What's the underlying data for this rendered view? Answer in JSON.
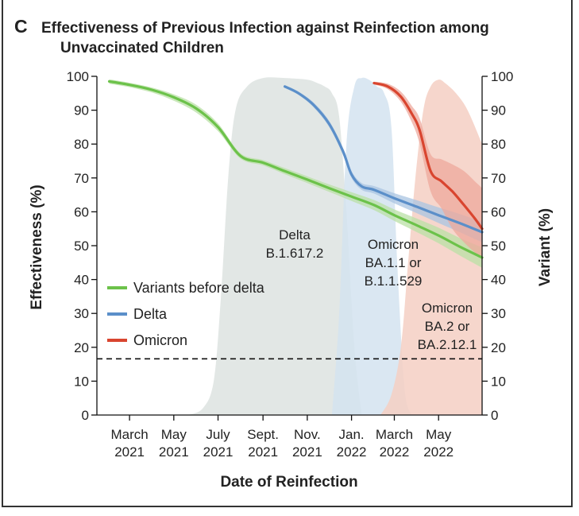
{
  "panel_label": "C",
  "chart_data": {
    "type": "line",
    "title": "Effectiveness of Previous Infection against Reinfection among",
    "title_line2": "Unvaccinated Children",
    "xlabel": "Date of Reinfection",
    "ylabel": "Effectiveness (%)",
    "y2label": "Variant (%)",
    "ylim": [
      0,
      100
    ],
    "y2lim": [
      0,
      100
    ],
    "yticks": [
      0,
      10,
      20,
      30,
      40,
      50,
      60,
      70,
      80,
      90,
      100
    ],
    "xlim": [
      "2021-01-15",
      "2022-06-30"
    ],
    "xticks": [
      {
        "date": "2021-03-01",
        "line1": "March",
        "line2": "2021"
      },
      {
        "date": "2021-05-01",
        "line1": "May",
        "line2": "2021"
      },
      {
        "date": "2021-07-01",
        "line1": "July",
        "line2": "2021"
      },
      {
        "date": "2021-09-01",
        "line1": "Sept.",
        "line2": "2021"
      },
      {
        "date": "2021-11-01",
        "line1": "Nov.",
        "line2": "2021"
      },
      {
        "date": "2022-01-01",
        "line1": "Jan.",
        "line2": "2022"
      },
      {
        "date": "2022-03-01",
        "line1": "March",
        "line2": "2022"
      },
      {
        "date": "2022-05-01",
        "line1": "May",
        "line2": "2022"
      }
    ],
    "reference_line": 16.6,
    "series": [
      {
        "name": "Variants before delta",
        "color": "#6cc24a",
        "band_color": "#b9e0a5",
        "x": [
          "2021-02-01",
          "2021-03-01",
          "2021-04-01",
          "2021-05-01",
          "2021-06-01",
          "2021-07-01",
          "2021-08-01",
          "2021-09-01",
          "2021-10-01",
          "2021-11-01",
          "2021-12-01",
          "2022-01-01",
          "2022-02-01",
          "2022-03-01",
          "2022-04-01",
          "2022-05-01",
          "2022-06-01",
          "2022-06-30"
        ],
        "y": [
          98.5,
          97.5,
          96.0,
          93.8,
          90.5,
          85.0,
          76.5,
          74.5,
          72.0,
          69.5,
          67.0,
          64.5,
          62.0,
          59.0,
          56.0,
          53.0,
          49.5,
          46.5
        ],
        "lower": [
          97.8,
          96.8,
          95.2,
          92.8,
          89.3,
          83.8,
          75.7,
          73.7,
          71.1,
          68.5,
          65.9,
          63.2,
          60.5,
          57.3,
          54.0,
          50.7,
          46.9,
          43.5
        ],
        "upper": [
          99.1,
          98.1,
          96.7,
          94.7,
          91.6,
          86.1,
          77.3,
          75.3,
          72.9,
          70.5,
          68.1,
          65.8,
          63.5,
          60.7,
          58.0,
          55.3,
          52.1,
          49.5
        ]
      },
      {
        "name": "Delta",
        "color": "#5b8fc9",
        "band_color": "#a9c4e2",
        "x": [
          "2021-10-01",
          "2021-10-20",
          "2021-11-10",
          "2021-12-01",
          "2021-12-20",
          "2022-01-01",
          "2022-01-15",
          "2022-02-01",
          "2022-03-01",
          "2022-04-01",
          "2022-05-01",
          "2022-06-01",
          "2022-06-30"
        ],
        "y": [
          97.0,
          95.0,
          91.5,
          86.0,
          78.0,
          71.0,
          67.5,
          66.5,
          64.0,
          61.5,
          59.0,
          56.5,
          54.0
        ],
        "lower": [
          96.6,
          94.5,
          90.8,
          85.1,
          77.0,
          70.0,
          66.5,
          65.4,
          62.5,
          59.6,
          56.7,
          53.8,
          51.0
        ],
        "upper": [
          97.4,
          95.5,
          92.2,
          86.9,
          79.0,
          72.0,
          68.5,
          67.6,
          65.5,
          63.4,
          61.3,
          59.2,
          57.0
        ]
      },
      {
        "name": "Omicron",
        "color": "#d9452f",
        "band_color": "#eea89c",
        "x": [
          "2022-02-01",
          "2022-02-20",
          "2022-03-10",
          "2022-03-25",
          "2022-04-05",
          "2022-04-20",
          "2022-05-05",
          "2022-05-20",
          "2022-06-05",
          "2022-06-20",
          "2022-06-30"
        ],
        "y": [
          98.0,
          97.0,
          94.0,
          89.0,
          84.0,
          72.0,
          69.0,
          66.0,
          62.0,
          58.0,
          55.0
        ],
        "lower": [
          97.6,
          96.2,
          92.5,
          86.5,
          80.0,
          66.0,
          61.0,
          55.0,
          51.0,
          48.0,
          46.0
        ],
        "upper": [
          98.4,
          97.8,
          95.5,
          91.3,
          87.5,
          77.0,
          75.5,
          74.0,
          72.0,
          69.0,
          67.0
        ]
      }
    ],
    "variant_areas": [
      {
        "name": "Delta B.1.617.2",
        "label_lines": [
          "Delta",
          "B.1.617.2"
        ],
        "color": "#dde3e0",
        "x": [
          "2021-05-20",
          "2021-06-10",
          "2021-06-25",
          "2021-07-05",
          "2021-07-15",
          "2021-07-25",
          "2021-08-10",
          "2021-09-01",
          "2021-10-01",
          "2021-11-01",
          "2021-11-15",
          "2021-11-25",
          "2021-12-05",
          "2021-12-15",
          "2021-12-25",
          "2022-01-05",
          "2022-01-15"
        ],
        "y": [
          0,
          2,
          10,
          35,
          70,
          90,
          97,
          99.5,
          99.5,
          99,
          98,
          97,
          95,
          88,
          60,
          20,
          0
        ]
      },
      {
        "name": "Omicron BA.1.1 or B.1.1.529",
        "label_lines": [
          "Omicron",
          "BA.1.1 or",
          "B.1.1.529"
        ],
        "color": "#d3e3f0",
        "x": [
          "2021-12-05",
          "2021-12-15",
          "2021-12-25",
          "2022-01-05",
          "2022-01-15",
          "2022-01-25",
          "2022-02-05",
          "2022-02-15",
          "2022-02-25",
          "2022-03-05",
          "2022-03-15",
          "2022-03-25"
        ],
        "y": [
          0,
          30,
          80,
          97,
          99.5,
          99,
          97,
          95,
          85,
          45,
          8,
          0
        ]
      },
      {
        "name": "Omicron BA.2 or BA.2.12.1",
        "label_lines": [
          "Omicron",
          "BA.2 or",
          "BA.2.12.1"
        ],
        "color": "#f5cfc3",
        "x": [
          "2022-02-10",
          "2022-02-25",
          "2022-03-10",
          "2022-03-20",
          "2022-03-30",
          "2022-04-10",
          "2022-04-20",
          "2022-05-01",
          "2022-05-10",
          "2022-05-25",
          "2022-06-10",
          "2022-06-30"
        ],
        "y": [
          0,
          6,
          20,
          45,
          70,
          90,
          97,
          99,
          98,
          95,
          90,
          80
        ]
      }
    ],
    "legend": {
      "placement": "bottom-left",
      "items": [
        "Variants before delta",
        "Delta",
        "Omicron"
      ]
    }
  }
}
